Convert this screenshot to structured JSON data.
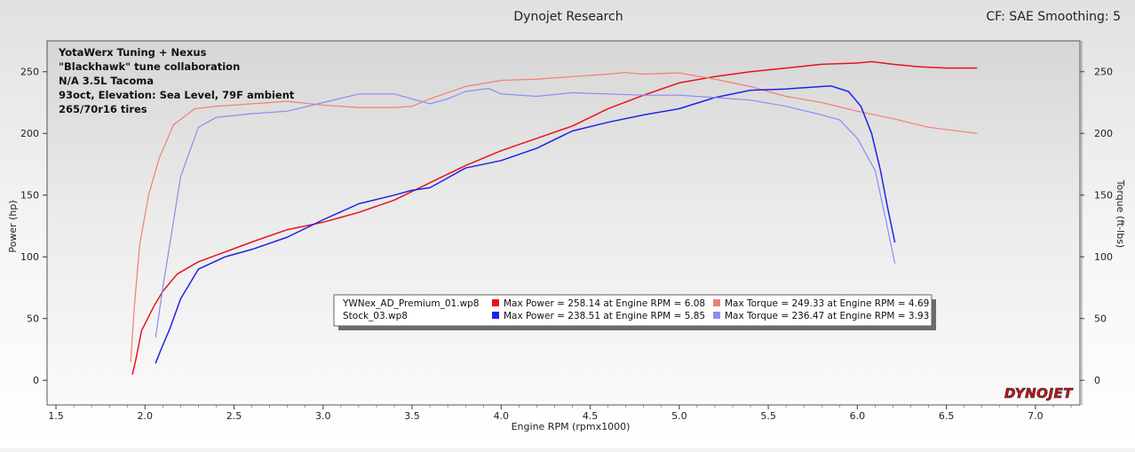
{
  "header": {
    "title": "Dynojet Research",
    "right_info": "CF: SAE Smoothing: 5"
  },
  "brand": {
    "logo_text": "DYNOJET"
  },
  "annotation": {
    "lines": [
      "YotaWerx Tuning + Nexus",
      "\"Blackhawk\" tune collaboration",
      "N/A 3.5L Tacoma",
      "93oct, Elevation: Sea Level, 79F ambient",
      "265/70r16 tires"
    ]
  },
  "legend": {
    "rows": [
      {
        "file": "YWNex_AD_Premium_01.wp8",
        "power_text": "Max Power = 258.14 at Engine RPM = 6.08",
        "torque_text": "Max Torque = 249.33 at Engine RPM = 4.69",
        "power_color": "#e8141a",
        "torque_color": "#f07f75"
      },
      {
        "file": "Stock_03.wp8",
        "power_text": "Max Power = 238.51 at Engine RPM = 5.85",
        "torque_text": "Max Torque = 236.47 at Engine RPM = 3.93",
        "power_color": "#1e22e8",
        "torque_color": "#8c8cf2"
      }
    ]
  },
  "chart_data": {
    "type": "line",
    "title": "Dynojet Research",
    "xlabel": "Engine RPM (rpmx1000)",
    "ylabel": "Power (hp)",
    "y2label": "Torque (ft-lbs)",
    "xlim": [
      1.45,
      7.25
    ],
    "ylim": [
      -20,
      275
    ],
    "y2lim": [
      -20,
      275
    ],
    "x_ticks": [
      1.5,
      2.0,
      2.5,
      3.0,
      3.5,
      4.0,
      4.5,
      5.0,
      5.5,
      6.0,
      6.5,
      7.0
    ],
    "x_tick_labels": [
      "1.5",
      "2.0",
      "2.5",
      "3.0",
      "3.5",
      "4.0",
      "4.5",
      "5.0",
      "5.5",
      "6.0",
      "6.5",
      "7.0"
    ],
    "y_ticks": [
      0,
      50,
      100,
      150,
      200,
      250
    ],
    "y_tick_labels": [
      "0",
      "50",
      "100",
      "150",
      "200",
      "250"
    ],
    "y2_ticks": [
      0,
      50,
      100,
      150,
      200,
      250
    ],
    "y2_tick_labels": [
      "0",
      "50",
      "100",
      "150",
      "200",
      "250"
    ],
    "grid": false,
    "series": [
      {
        "name": "YWNex_AD_Premium_01.wp8",
        "axis": "left",
        "color": "#e8141a",
        "x": [
          1.93,
          1.95,
          1.98,
          2.05,
          2.1,
          2.18,
          2.3,
          2.45,
          2.6,
          2.8,
          3.0,
          3.2,
          3.4,
          3.6,
          3.8,
          4.0,
          4.2,
          4.4,
          4.6,
          4.8,
          5.0,
          5.2,
          5.4,
          5.6,
          5.8,
          6.0,
          6.08,
          6.2,
          6.35,
          6.5,
          6.67
        ],
        "y": [
          5,
          18,
          40,
          60,
          72,
          86,
          96,
          104,
          112,
          122,
          128,
          136,
          146,
          160,
          174,
          186,
          196,
          206,
          220,
          231,
          241,
          246,
          250,
          253,
          256,
          257,
          258.14,
          256,
          254,
          253,
          253
        ]
      },
      {
        "name": "YWNex_AD_Premium_01.wp8",
        "axis": "right",
        "color": "#f07f75",
        "x": [
          1.92,
          1.94,
          1.97,
          2.02,
          2.08,
          2.16,
          2.28,
          2.4,
          2.6,
          2.8,
          3.0,
          3.2,
          3.4,
          3.5,
          3.6,
          3.8,
          4.0,
          4.2,
          4.4,
          4.6,
          4.69,
          4.8,
          5.0,
          5.2,
          5.4,
          5.6,
          5.8,
          6.0,
          6.2,
          6.4,
          6.67
        ],
        "y": [
          15,
          60,
          110,
          150,
          180,
          207,
          220,
          222,
          224,
          226,
          223,
          221,
          221,
          222,
          228,
          238,
          243,
          244,
          246,
          248,
          249.33,
          248,
          249,
          244,
          238,
          230,
          225,
          218,
          212,
          205,
          200
        ]
      },
      {
        "name": "Stock_03.wp8",
        "axis": "left",
        "color": "#1e22e8",
        "x": [
          2.06,
          2.09,
          2.14,
          2.2,
          2.3,
          2.45,
          2.6,
          2.8,
          3.0,
          3.2,
          3.4,
          3.5,
          3.6,
          3.8,
          4.0,
          4.2,
          4.4,
          4.6,
          4.8,
          5.0,
          5.2,
          5.4,
          5.6,
          5.85,
          5.95,
          6.02,
          6.08,
          6.13,
          6.17,
          6.21
        ],
        "y": [
          14,
          25,
          42,
          66,
          90,
          100,
          106,
          116,
          130,
          143,
          150,
          154,
          156,
          172,
          178,
          188,
          202,
          209,
          215,
          220,
          229,
          235,
          236,
          238.51,
          234,
          222,
          200,
          170,
          140,
          112
        ]
      },
      {
        "name": "Stock_03.wp8",
        "axis": "right",
        "color": "#8c8cf2",
        "x": [
          2.06,
          2.1,
          2.15,
          2.2,
          2.25,
          2.3,
          2.4,
          2.6,
          2.8,
          3.0,
          3.2,
          3.4,
          3.6,
          3.7,
          3.8,
          3.93,
          4.0,
          4.2,
          4.4,
          4.6,
          4.8,
          5.0,
          5.2,
          5.4,
          5.6,
          5.8,
          5.9,
          6.0,
          6.1,
          6.16,
          6.21
        ],
        "y": [
          35,
          75,
          120,
          165,
          185,
          205,
          213,
          216,
          218,
          225,
          232,
          232,
          224,
          228,
          234,
          236.47,
          232,
          230,
          233,
          232,
          231,
          231,
          229,
          227,
          222,
          215,
          211,
          196,
          170,
          130,
          95
        ]
      }
    ]
  }
}
